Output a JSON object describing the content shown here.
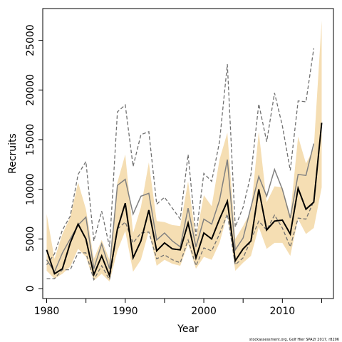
{
  "chart_data": {
    "type": "line",
    "xlabel": "Year",
    "ylabel": "Recruits",
    "caption": "stockassessment.org, Golf Hier SPALY 2017, r8206",
    "xlim": [
      1979.5,
      2016.5
    ],
    "ylim": [
      -1000,
      28200
    ],
    "x_ticks": [
      1980,
      1985,
      1990,
      1995,
      2000,
      2005,
      2010,
      2015
    ],
    "x_tick_labels": [
      {
        "value": 1980,
        "label": "1980"
      },
      {
        "value": 1990,
        "label": "1990"
      },
      {
        "value": 2000,
        "label": "2000"
      },
      {
        "value": 2010,
        "label": "2010"
      }
    ],
    "y_ticks": [
      {
        "value": 0,
        "label": "0"
      },
      {
        "value": 5000,
        "label": "5000"
      },
      {
        "value": 10000,
        "label": "10000"
      },
      {
        "value": 15000,
        "label": "15000"
      },
      {
        "value": 20000,
        "label": "20000"
      },
      {
        "value": 25000,
        "label": "25000"
      }
    ],
    "grid": false,
    "colors": {
      "band": "#f5deb3",
      "estimate": "#000000",
      "comparison": "#808080",
      "comparison_ci": "#707070"
    },
    "x": [
      1980,
      1981,
      1982,
      1983,
      1984,
      1985,
      1986,
      1987,
      1988,
      1989,
      1990,
      1991,
      1992,
      1993,
      1994,
      1995,
      1996,
      1997,
      1998,
      1999,
      2000,
      2001,
      2002,
      2003,
      2004,
      2005,
      2006,
      2007,
      2008,
      2009,
      2010,
      2011,
      2012,
      2013,
      2014,
      2015
    ],
    "series": [
      {
        "role": "band",
        "lower": [
          1800,
          1000,
          1500,
          2200,
          4000,
          3200,
          800,
          1500,
          700,
          3800,
          5800,
          1700,
          2900,
          5800,
          2300,
          2900,
          2500,
          2300,
          4500,
          2000,
          3200,
          2900,
          4600,
          7500,
          1800,
          2600,
          3300,
          6200,
          4000,
          4600,
          4600,
          3300,
          7000,
          5500,
          6100,
          10200
        ],
        "upper": [
          7500,
          3000,
          5500,
          7200,
          10700,
          8000,
          3000,
          4900,
          2900,
          10700,
          13500,
          5600,
          8200,
          12700,
          6800,
          6700,
          6400,
          6300,
          10800,
          5100,
          9400,
          8300,
          13000,
          15700,
          5000,
          6300,
          7800,
          15800,
          8700,
          10300,
          10200,
          7400,
          15300,
          12600,
          14100,
          27000
        ]
      },
      {
        "role": "estimate",
        "values": [
          3900,
          1500,
          2000,
          4600,
          6500,
          5000,
          1400,
          3300,
          1300,
          6000,
          8600,
          3100,
          4800,
          7900,
          3800,
          4600,
          4000,
          3900,
          6600,
          3100,
          5600,
          5000,
          7000,
          8800,
          2800,
          4000,
          4800,
          10000,
          5900,
          6800,
          6900,
          5500,
          10100,
          8000,
          8700,
          16700
        ]
      },
      {
        "role": "comparison",
        "values": [
          2900,
          1700,
          3600,
          5000,
          6400,
          7200,
          2000,
          4500,
          2000,
          10400,
          11000,
          7500,
          9300,
          9600,
          4900,
          5600,
          4800,
          4200,
          8100,
          4200,
          7000,
          6500,
          8900,
          13000,
          3900,
          5100,
          8200,
          11300,
          9300,
          12000,
          10000,
          7100,
          11500,
          11400,
          14600,
          null
        ]
      },
      {
        "role": "comparison_ci_upper",
        "values": [
          2400,
          3500,
          5900,
          7300,
          11500,
          12800,
          4800,
          7800,
          4200,
          17800,
          18500,
          12300,
          15500,
          15800,
          8500,
          9200,
          8100,
          7000,
          13500,
          5300,
          11600,
          10800,
          14800,
          22600,
          6200,
          8200,
          11500,
          18600,
          14800,
          19700,
          16400,
          11900,
          18900,
          18800,
          24200,
          null
        ]
      },
      {
        "role": "comparison_ci_lower",
        "values": [
          1000,
          1000,
          1900,
          1900,
          3600,
          3600,
          900,
          2300,
          900,
          6000,
          6700,
          4600,
          5600,
          5700,
          3000,
          3400,
          2900,
          2600,
          4900,
          2300,
          4100,
          3800,
          5500,
          7500,
          2400,
          3100,
          4900,
          6800,
          5900,
          7400,
          6100,
          4200,
          7100,
          7000,
          8800,
          null
        ]
      }
    ]
  }
}
